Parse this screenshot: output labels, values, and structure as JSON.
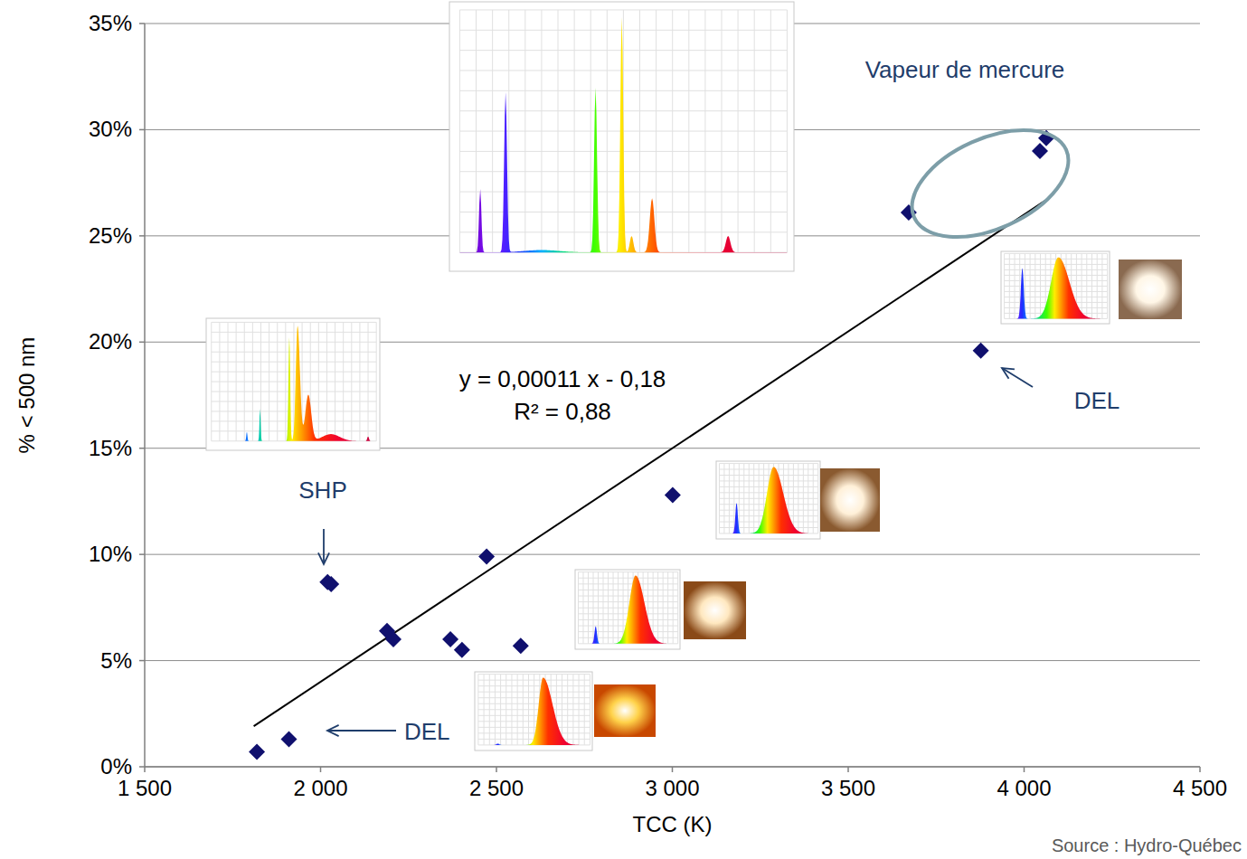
{
  "chart_data": {
    "type": "scatter",
    "x_label": "TCC (K)",
    "y_label": "% < 500 nm",
    "x": [
      1819,
      1910,
      2020,
      2030,
      2189,
      2207,
      2369,
      2402,
      2472,
      2569,
      3001,
      3672,
      3877,
      4045,
      4063
    ],
    "values": [
      0.7,
      1.3,
      8.7,
      8.6,
      6.4,
      6.0,
      6.0,
      5.5,
      9.9,
      5.7,
      12.8,
      26.1,
      19.6,
      29.0,
      29.6
    ],
    "color": "#10106e",
    "marker": "diamond",
    "xlim": [
      1500,
      4500
    ],
    "ylim": [
      0,
      35
    ],
    "xticks": [
      {
        "value": 1500,
        "label": "1 500"
      },
      {
        "value": 2000,
        "label": "2 000"
      },
      {
        "value": 2500,
        "label": "2 500"
      },
      {
        "value": 3000,
        "label": "3 000"
      },
      {
        "value": 3500,
        "label": "3 500"
      },
      {
        "value": 4000,
        "label": "4 000"
      },
      {
        "value": 4500,
        "label": "4 500"
      }
    ],
    "yticks": [
      {
        "value": 0,
        "label": "0%"
      },
      {
        "value": 5,
        "label": "5%"
      },
      {
        "value": 10,
        "label": "10%"
      },
      {
        "value": 15,
        "label": "15%"
      },
      {
        "value": 20,
        "label": "20%"
      },
      {
        "value": 25,
        "label": "25%"
      },
      {
        "value": 30,
        "label": "30%"
      },
      {
        "value": 35,
        "label": "35%"
      }
    ],
    "grid": true,
    "trendline": {
      "slope": 0.011,
      "intercept": -18,
      "x": [
        1810,
        4060
      ]
    },
    "annotations": [
      {
        "text": "y = 0,00011 x - 0,18"
      },
      {
        "text": "R² = 0,88"
      },
      {
        "text": "Vapeur de mercure"
      },
      {
        "text": "SHP"
      },
      {
        "text": "DEL"
      },
      {
        "text": "DEL"
      },
      {
        "text": "Source : Hydro-Québec"
      }
    ]
  }
}
